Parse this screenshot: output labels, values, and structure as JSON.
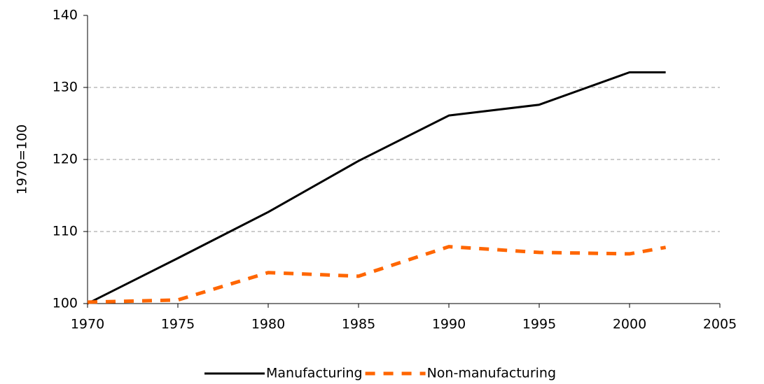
{
  "chart_data": {
    "type": "line",
    "y_label": "1970=100",
    "x": [
      1970,
      1975,
      1980,
      1985,
      1990,
      1995,
      2000,
      2002
    ],
    "series": [
      {
        "name": "Manufacturing",
        "color": "#000000",
        "dashed": false,
        "values": [
          100,
          106.3,
          112.7,
          119.8,
          126.1,
          127.6,
          132.1,
          132.1
        ]
      },
      {
        "name": "Non-manufacturing",
        "color": "#ff6600",
        "dashed": true,
        "values": [
          100.2,
          100.5,
          104.3,
          103.8,
          107.9,
          107.1,
          106.9,
          107.8
        ]
      }
    ],
    "xlim": [
      1970,
      2005
    ],
    "xticks": [
      1970,
      1975,
      1980,
      1985,
      1990,
      1995,
      2000,
      2005
    ],
    "ylim": [
      100,
      140
    ],
    "yticks": [
      100,
      110,
      120,
      130,
      140
    ],
    "grid": true,
    "legend": "bottom"
  }
}
